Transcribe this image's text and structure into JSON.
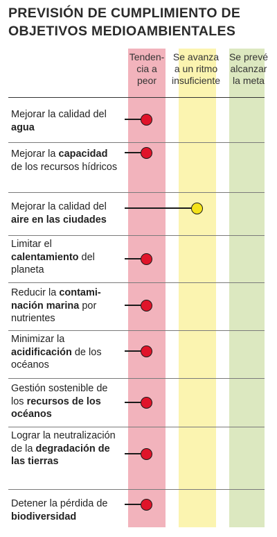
{
  "title_line1": "PREVISIÓN DE CUMPLIMIENTO DE",
  "title_line2": "OBJETIVOS MEDIOAMBIENTALES",
  "columns": [
    {
      "key": "worse",
      "lines": [
        "Tenden-",
        "cia a",
        "peor"
      ],
      "color": "#f2b3bc"
    },
    {
      "key": "slow",
      "lines": [
        "Se avanza",
        "a un ritmo",
        "insuficiente"
      ],
      "color": "#fbf4b0"
    },
    {
      "key": "met",
      "lines": [
        "Se prevé",
        "alcanzar",
        "la meta"
      ],
      "color": "#dce8c0"
    }
  ],
  "status_colors": {
    "worse": "#e0142a",
    "slow": "#f4e21a"
  },
  "rows": [
    {
      "parts": [
        {
          "t": "Mejorar la calidad del ",
          "b": false
        },
        {
          "t": "agua",
          "b": true
        }
      ],
      "status": "worse"
    },
    {
      "parts": [
        {
          "t": "Mejorar la ",
          "b": false
        },
        {
          "t": "capacidad",
          "b": true
        },
        {
          "t": " de los recursos hídricos",
          "b": false
        }
      ],
      "status": "worse"
    },
    {
      "parts": [
        {
          "t": "Mejorar la calidad del ",
          "b": false
        },
        {
          "t": "aire en las ciudades",
          "b": true
        }
      ],
      "status": "slow"
    },
    {
      "parts": [
        {
          "t": "Limitar el ",
          "b": false
        },
        {
          "t": "calentamiento",
          "b": true
        },
        {
          "t": " del planeta",
          "b": false
        }
      ],
      "status": "worse"
    },
    {
      "parts": [
        {
          "t": "Reducir la ",
          "b": false
        },
        {
          "t": "contami-nación marina",
          "b": true
        },
        {
          "t": " por nutrientes",
          "b": false
        }
      ],
      "status": "worse"
    },
    {
      "parts": [
        {
          "t": "Minimizar la ",
          "b": false
        },
        {
          "t": "acidificación",
          "b": true
        },
        {
          "t": " de los océanos",
          "b": false
        }
      ],
      "status": "worse"
    },
    {
      "parts": [
        {
          "t": "Gestión sostenible de los ",
          "b": false
        },
        {
          "t": "recursos de los océanos",
          "b": true
        }
      ],
      "status": "worse"
    },
    {
      "parts": [
        {
          "t": "Lograr la neutralización de la ",
          "b": false
        },
        {
          "t": "degradación de las tierras",
          "b": true
        }
      ],
      "status": "worse"
    },
    {
      "parts": [
        {
          "t": "Detener la pérdida de ",
          "b": false
        },
        {
          "t": "biodiversidad",
          "b": true
        }
      ],
      "status": "worse"
    }
  ]
}
